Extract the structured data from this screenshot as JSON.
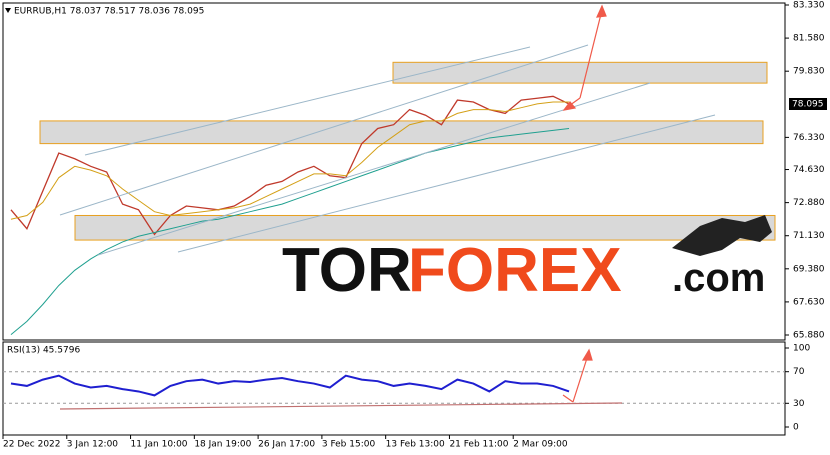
{
  "chart_data": [
    {
      "type": "line",
      "title": "EURRUB,H1  78.037 78.517 78.036 78.095",
      "watermark": [
        "TOR",
        "FOREX",
        ".com"
      ],
      "categories": [
        "22 Dec 2022",
        null,
        null,
        null,
        "3 Jan 12:00",
        null,
        null,
        null,
        "11 Jan 10:00",
        null,
        null,
        null,
        "18 Jan 19:00",
        null,
        null,
        null,
        "26 Jan 17:00",
        null,
        null,
        null,
        "3 Feb 15:00",
        null,
        null,
        null,
        "13 Feb 13:00",
        null,
        null,
        null,
        "21 Feb 11:00",
        null,
        null,
        null,
        "2 Mar 09:00",
        null,
        null,
        null
      ],
      "series": [
        {
          "color": "#c0392b",
          "values": [
            72.5,
            71.5,
            73.5,
            75.5,
            75.2,
            74.8,
            74.5,
            72.8,
            72.5,
            71.2,
            72.2,
            72.7,
            72.6,
            72.5,
            72.7,
            73.2,
            73.8,
            74.0,
            74.5,
            74.8,
            74.3,
            74.2,
            76.0,
            76.8,
            77.0,
            77.8,
            77.5,
            77.0,
            78.3,
            78.2,
            77.8,
            77.6,
            78.3,
            78.4,
            78.5,
            78.1
          ]
        },
        {
          "color": "#d4a017",
          "values": [
            72.0,
            72.2,
            72.9,
            74.2,
            74.8,
            74.6,
            74.3,
            73.6,
            73.0,
            72.4,
            72.2,
            72.3,
            72.4,
            72.5,
            72.6,
            72.8,
            73.2,
            73.6,
            74.0,
            74.4,
            74.4,
            74.3,
            75.0,
            75.8,
            76.4,
            77.0,
            77.2,
            77.2,
            77.6,
            77.8,
            77.8,
            77.7,
            77.9,
            78.1,
            78.2,
            78.2
          ]
        },
        {
          "color": "#20a090",
          "values": [
            65.9,
            66.6,
            67.5,
            68.5,
            69.3,
            69.9,
            70.4,
            70.8,
            71.1,
            71.3,
            71.5,
            71.7,
            71.9,
            72.0,
            72.2,
            72.4,
            72.6,
            72.8,
            73.1,
            73.4,
            73.7,
            74.0,
            74.3,
            74.6,
            74.9,
            75.2,
            75.5,
            75.7,
            75.9,
            76.1,
            76.3,
            76.4,
            76.5,
            76.6,
            76.7,
            76.8
          ]
        }
      ],
      "zones": [
        {
          "low": 79.2,
          "high": 80.3
        },
        {
          "low": 76.0,
          "high": 77.2
        },
        {
          "low": 70.9,
          "high": 72.2
        }
      ],
      "price_tag": {
        "value": 78.095,
        "label": "78.095"
      },
      "ylim": [
        65.88,
        83.33
      ],
      "yticks": [
        {
          "value": 65.88,
          "label": "65.880"
        },
        {
          "value": 67.63,
          "label": "67.630"
        },
        {
          "value": 69.38,
          "label": "69.380"
        },
        {
          "value": 71.13,
          "label": "71.130"
        },
        {
          "value": 72.88,
          "label": "72.880"
        },
        {
          "value": 74.63,
          "label": "74.630"
        },
        {
          "value": 76.33,
          "label": "76.330"
        },
        {
          "value": 79.83,
          "label": "79.830"
        },
        {
          "value": 81.58,
          "label": "81.580"
        },
        {
          "value": 83.33,
          "label": "83.330"
        }
      ]
    },
    {
      "type": "line",
      "title": "RSI(13) 45.5796",
      "series": [
        {
          "color": "#1f1fd0",
          "values": [
            55,
            52,
            60,
            65,
            55,
            50,
            52,
            48,
            45,
            40,
            52,
            58,
            60,
            55,
            58,
            57,
            60,
            62,
            58,
            55,
            50,
            65,
            60,
            58,
            52,
            55,
            52,
            48,
            60,
            55,
            45,
            58,
            55,
            55,
            52,
            45
          ]
        }
      ],
      "levels": [
        30,
        70
      ],
      "ylim": [
        0,
        100
      ],
      "yticks": [
        0,
        30,
        70,
        100
      ]
    }
  ]
}
